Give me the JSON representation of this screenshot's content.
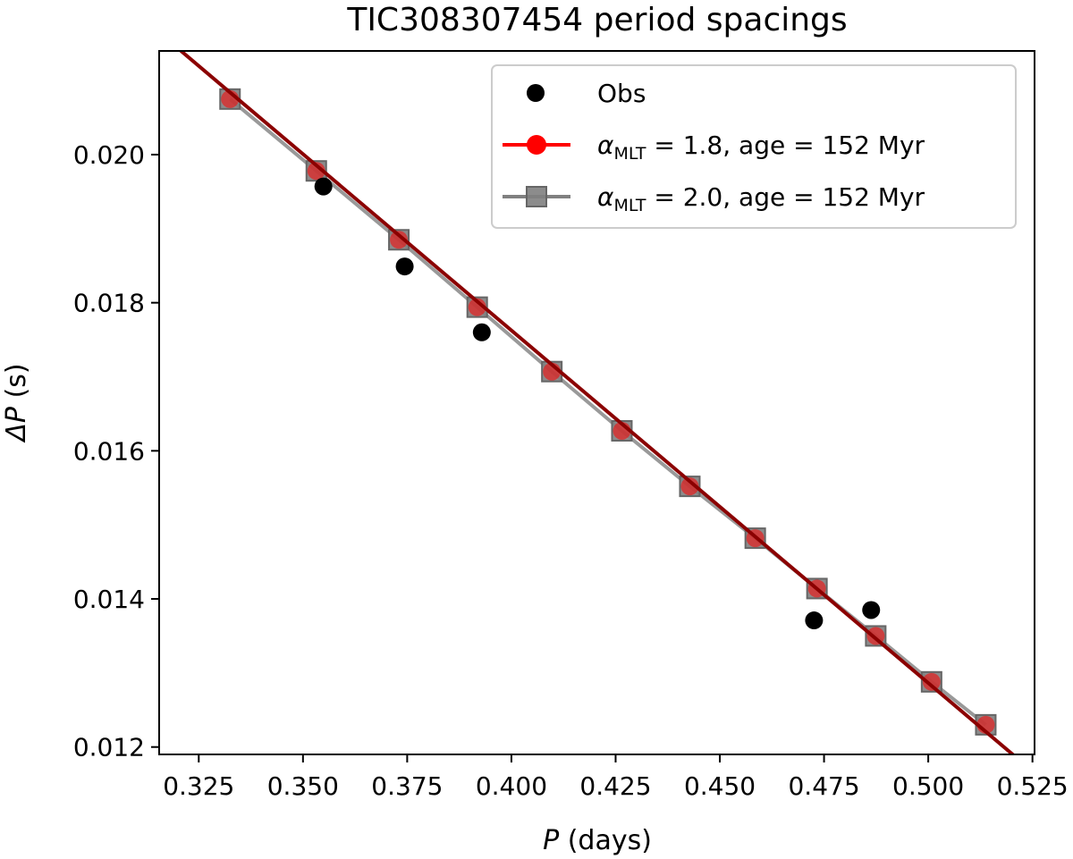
{
  "chart_data": {
    "type": "scatter",
    "title": "TIC308307454 period spacings",
    "xlabel_var": "P",
    "xlabel_unit": " (days)",
    "ylabel_var": "ΔP",
    "ylabel_unit": " (s)",
    "xlim": [
      0.3155,
      0.5255
    ],
    "ylim": [
      0.0119,
      0.0214
    ],
    "xticks": [
      0.325,
      0.35,
      0.375,
      0.4,
      0.425,
      0.45,
      0.475,
      0.5,
      0.525
    ],
    "xtick_labels": [
      "0.325",
      "0.350",
      "0.375",
      "0.400",
      "0.425",
      "0.450",
      "0.475",
      "0.500",
      "0.525"
    ],
    "yticks": [
      0.012,
      0.014,
      0.016,
      0.018,
      0.02
    ],
    "ytick_labels": [
      "0.012",
      "0.014",
      "0.016",
      "0.018",
      "0.020"
    ],
    "legend_position": "top-right",
    "fit_line": {
      "color": "#8b0000",
      "points": [
        [
          0.3155,
          0.02165
        ],
        [
          0.5255,
          0.01165
        ]
      ]
    },
    "series": [
      {
        "name": "Obs",
        "marker": "circle",
        "color": "#000000",
        "points": [
          [
            0.3549,
            0.01957
          ],
          [
            0.3744,
            0.01849
          ],
          [
            0.3929,
            0.0176
          ],
          [
            0.4726,
            0.01371
          ],
          [
            0.4863,
            0.01385
          ]
        ]
      },
      {
        "name": "alpha_MLT = 1.8, age = 152 Myr",
        "legend_parts": {
          "greek": "α",
          "sub": "MLT",
          "rest": " = 1.8, age = 152 Myr"
        },
        "marker": "circle",
        "color": "#ff0000",
        "points": [
          [
            0.3325,
            0.02075
          ],
          [
            0.3532,
            0.01978
          ],
          [
            0.373,
            0.01885
          ],
          [
            0.3918,
            0.01794
          ],
          [
            0.4097,
            0.01707
          ],
          [
            0.4265,
            0.01627
          ],
          [
            0.4428,
            0.01552
          ],
          [
            0.4585,
            0.01482
          ],
          [
            0.4733,
            0.01414
          ],
          [
            0.4874,
            0.0135
          ],
          [
            0.5008,
            0.01288
          ],
          [
            0.5138,
            0.0123
          ]
        ]
      },
      {
        "name": "alpha_MLT = 2.0, age = 152 Myr",
        "legend_parts": {
          "greek": "α",
          "sub": "MLT",
          "rest": " = 2.0, age = 152 Myr"
        },
        "marker": "square",
        "color": "#808080",
        "points": [
          [
            0.3325,
            0.02075
          ],
          [
            0.3532,
            0.01978
          ],
          [
            0.373,
            0.01885
          ],
          [
            0.3918,
            0.01794
          ],
          [
            0.4097,
            0.01707
          ],
          [
            0.4265,
            0.01627
          ],
          [
            0.4428,
            0.01552
          ],
          [
            0.4585,
            0.01482
          ],
          [
            0.4733,
            0.01414
          ],
          [
            0.4874,
            0.0135
          ],
          [
            0.5008,
            0.01288
          ],
          [
            0.5138,
            0.0123
          ]
        ]
      }
    ]
  }
}
